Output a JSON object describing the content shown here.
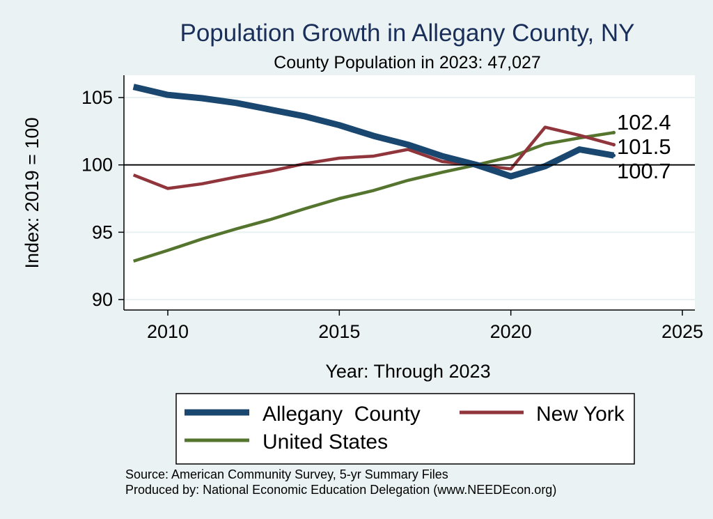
{
  "chart_data": {
    "type": "line",
    "title": "Population Growth in Allegany County, NY",
    "subtitle": "County Population in 2023: 47,027",
    "xlabel": "Year: Through 2023",
    "ylabel": "Index: 2019 = 100",
    "xlim": [
      2009,
      2025
    ],
    "ylim": [
      89.5,
      106.5
    ],
    "x_ticks": [
      2010,
      2015,
      2020,
      2025
    ],
    "y_ticks": [
      90,
      95,
      100,
      105
    ],
    "reference_line": 100,
    "x": [
      2009,
      2010,
      2011,
      2012,
      2013,
      2014,
      2015,
      2016,
      2017,
      2018,
      2019,
      2020,
      2021,
      2022,
      2023
    ],
    "series": [
      {
        "name": "Allegany  County",
        "color": "#1a476f",
        "values": [
          105.8,
          105.2,
          104.95,
          104.6,
          104.1,
          103.6,
          102.95,
          102.15,
          101.5,
          100.65,
          100.0,
          99.15,
          99.9,
          101.15,
          100.7
        ],
        "end_label": "100.7"
      },
      {
        "name": "New York",
        "color": "#90353b",
        "values": [
          99.25,
          98.25,
          98.6,
          99.1,
          99.55,
          100.1,
          100.5,
          100.65,
          101.15,
          100.25,
          100.0,
          99.7,
          102.8,
          102.2,
          101.5
        ],
        "end_label": "101.5"
      },
      {
        "name": "United States",
        "color": "#55752f",
        "values": [
          92.85,
          93.65,
          94.5,
          95.25,
          95.95,
          96.75,
          97.5,
          98.1,
          98.85,
          99.45,
          100.0,
          100.6,
          101.55,
          102.0,
          102.4
        ],
        "end_label": "102.4"
      }
    ],
    "notes": [
      "Source: American Community Survey, 5-yr Summary Files",
      "Produced by: National Economic Education Delegation (www.NEEDEcon.org)"
    ]
  }
}
